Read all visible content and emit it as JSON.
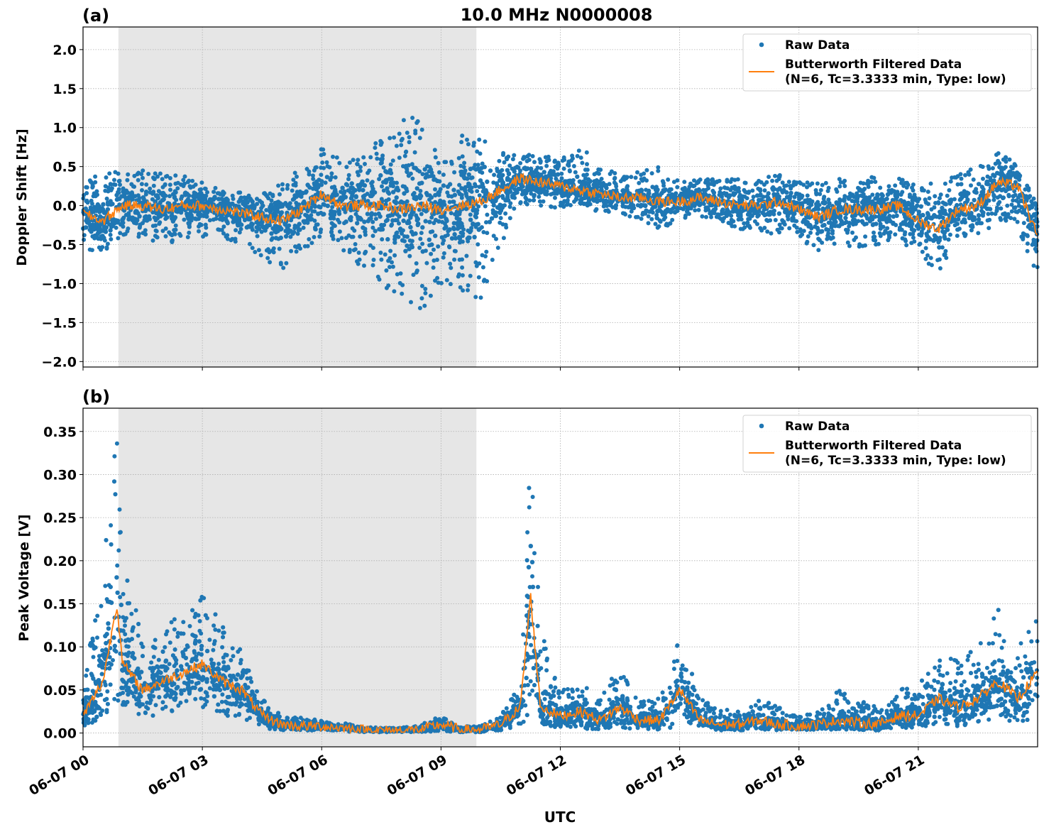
{
  "chart_data": [
    {
      "type": "scatter",
      "panel_label": "(a)",
      "title": "10.0 MHz N0000008",
      "xlabel": "",
      "ylabel": "Doppler Shift [Hz]",
      "xlim_hours_utc": [
        0,
        24
      ],
      "ylim": [
        -2.07,
        2.29
      ],
      "yticks": [
        "−2.0",
        "−1.5",
        "−1.0",
        "−0.5",
        "0.0",
        "0.5",
        "1.0",
        "1.5",
        "2.0"
      ],
      "ytick_values": [
        -2.0,
        -1.5,
        -1.0,
        -0.5,
        0.0,
        0.5,
        1.0,
        1.5,
        2.0
      ],
      "grid": true,
      "shaded_interval_hours_utc": [
        0.89,
        9.89
      ],
      "legend_placement": "top-right",
      "legend": [
        "Raw Data",
        "Butterworth Filtered Data",
        "(N=6, Tc=3.3333 min, Type: low)"
      ],
      "colors": {
        "raw": "#1f77b4",
        "filtered": "#ff7f0e",
        "shade": "#e6e6e6"
      },
      "x_hours": [
        0,
        0.5,
        1,
        1.5,
        2,
        2.5,
        3,
        3.5,
        4,
        4.5,
        5,
        5.5,
        6,
        6.5,
        7,
        7.5,
        8,
        8.5,
        9,
        9.5,
        10,
        10.5,
        11,
        11.5,
        12,
        12.5,
        13,
        13.5,
        14,
        14.5,
        15,
        15.5,
        16,
        16.5,
        17,
        17.5,
        18,
        18.5,
        19,
        19.5,
        20,
        20.5,
        21,
        21.5,
        22,
        22.5,
        23,
        23.5,
        24
      ],
      "filtered": [
        -0.1,
        -0.2,
        0.0,
        0.0,
        -0.05,
        0.0,
        0.0,
        -0.05,
        -0.1,
        -0.15,
        -0.2,
        -0.05,
        0.15,
        0.0,
        0.0,
        0.0,
        -0.05,
        0.0,
        -0.05,
        0.0,
        0.05,
        0.2,
        0.35,
        0.3,
        0.25,
        0.2,
        0.15,
        0.1,
        0.1,
        0.05,
        0.05,
        0.1,
        0.05,
        0.0,
        0.0,
        0.05,
        -0.05,
        -0.15,
        -0.05,
        -0.05,
        -0.05,
        0.0,
        -0.2,
        -0.3,
        -0.05,
        0.0,
        0.3,
        0.25,
        -0.4
      ],
      "raw_low": [
        -0.55,
        -0.6,
        -0.4,
        -0.4,
        -0.5,
        -0.45,
        -0.4,
        -0.4,
        -0.55,
        -0.7,
        -0.85,
        -0.6,
        -0.4,
        -0.6,
        -0.8,
        -1.0,
        -1.3,
        -1.4,
        -1.0,
        -1.1,
        -1.2,
        -0.5,
        0.0,
        0.0,
        -0.05,
        0.0,
        -0.1,
        -0.1,
        -0.2,
        -0.3,
        -0.2,
        -0.15,
        -0.25,
        -0.3,
        -0.35,
        -0.4,
        -0.5,
        -0.6,
        -0.5,
        -0.55,
        -0.5,
        -0.45,
        -0.6,
        -0.9,
        -0.4,
        -0.4,
        -0.2,
        -0.3,
        -0.9
      ],
      "raw_high": [
        0.35,
        0.4,
        0.45,
        0.45,
        0.45,
        0.4,
        0.3,
        0.2,
        0.2,
        0.15,
        0.3,
        0.55,
        0.75,
        0.6,
        0.6,
        0.9,
        1.1,
        1.3,
        0.6,
        0.9,
        0.9,
        0.7,
        0.7,
        0.65,
        0.6,
        0.8,
        0.5,
        0.4,
        0.45,
        0.5,
        0.35,
        0.35,
        0.35,
        0.35,
        0.35,
        0.4,
        0.35,
        0.3,
        0.35,
        0.3,
        0.4,
        0.35,
        0.3,
        0.3,
        0.45,
        0.5,
        0.7,
        0.55,
        0.0
      ]
    },
    {
      "type": "scatter",
      "panel_label": "(b)",
      "xlabel": "UTC",
      "ylabel": "Peak Voltage [V]",
      "xlim_hours_utc": [
        0,
        24
      ],
      "ylim": [
        -0.016,
        0.377
      ],
      "yticks": [
        "0.00",
        "0.05",
        "0.10",
        "0.15",
        "0.20",
        "0.25",
        "0.30",
        "0.35"
      ],
      "ytick_values": [
        0,
        0.05,
        0.1,
        0.15,
        0.2,
        0.25,
        0.3,
        0.35
      ],
      "xticks": [
        "06-07 00",
        "06-07 03",
        "06-07 06",
        "06-07 09",
        "06-07 12",
        "06-07 15",
        "06-07 18",
        "06-07 21"
      ],
      "xtick_hours": [
        0,
        3,
        6,
        9,
        12,
        15,
        18,
        21
      ],
      "grid": true,
      "shaded_interval_hours_utc": [
        0.89,
        9.89
      ],
      "legend_placement": "top-right",
      "legend": [
        "Raw Data",
        "Butterworth Filtered Data",
        "(N=6, Tc=3.3333 min, Type: low)"
      ],
      "x_hours": [
        0,
        0.5,
        0.85,
        1,
        1.5,
        2,
        2.5,
        3,
        3.5,
        4,
        4.5,
        5,
        5.5,
        6,
        6.5,
        7,
        7.5,
        8,
        8.5,
        9,
        9.5,
        10,
        10.5,
        11,
        11.25,
        11.5,
        12,
        12.5,
        13,
        13.5,
        14,
        14.5,
        15,
        15.5,
        16,
        16.5,
        17,
        17.5,
        18,
        18.5,
        19,
        19.5,
        20,
        20.5,
        21,
        21.5,
        22,
        22.5,
        23,
        23.5,
        24
      ],
      "filtered": [
        0.02,
        0.06,
        0.15,
        0.08,
        0.05,
        0.06,
        0.07,
        0.08,
        0.06,
        0.05,
        0.02,
        0.01,
        0.008,
        0.008,
        0.006,
        0.004,
        0.003,
        0.003,
        0.004,
        0.01,
        0.004,
        0.004,
        0.01,
        0.03,
        0.16,
        0.03,
        0.02,
        0.025,
        0.015,
        0.03,
        0.015,
        0.015,
        0.05,
        0.015,
        0.01,
        0.01,
        0.015,
        0.01,
        0.008,
        0.01,
        0.015,
        0.012,
        0.01,
        0.02,
        0.02,
        0.04,
        0.03,
        0.04,
        0.06,
        0.04,
        0.07
      ],
      "raw_low": [
        0.005,
        0.02,
        0.03,
        0.03,
        0.02,
        0.02,
        0.03,
        0.03,
        0.02,
        0.015,
        0.005,
        0.003,
        0.003,
        0.003,
        0.002,
        0.001,
        0.001,
        0.001,
        0.001,
        0.002,
        0.001,
        0.001,
        0.003,
        0.008,
        0.02,
        0.01,
        0.005,
        0.005,
        0.004,
        0.005,
        0.004,
        0.004,
        0.005,
        0.004,
        0.003,
        0.003,
        0.004,
        0.003,
        0.003,
        0.003,
        0.004,
        0.003,
        0.003,
        0.005,
        0.005,
        0.01,
        0.008,
        0.01,
        0.02,
        0.01,
        0.02
      ],
      "raw_high": [
        0.06,
        0.2,
        0.36,
        0.25,
        0.1,
        0.12,
        0.14,
        0.16,
        0.13,
        0.1,
        0.04,
        0.02,
        0.018,
        0.015,
        0.012,
        0.008,
        0.006,
        0.006,
        0.01,
        0.02,
        0.008,
        0.008,
        0.02,
        0.06,
        0.34,
        0.12,
        0.05,
        0.06,
        0.04,
        0.08,
        0.04,
        0.04,
        0.12,
        0.04,
        0.03,
        0.025,
        0.04,
        0.03,
        0.02,
        0.025,
        0.05,
        0.04,
        0.03,
        0.05,
        0.06,
        0.1,
        0.09,
        0.1,
        0.15,
        0.1,
        0.14
      ]
    }
  ]
}
